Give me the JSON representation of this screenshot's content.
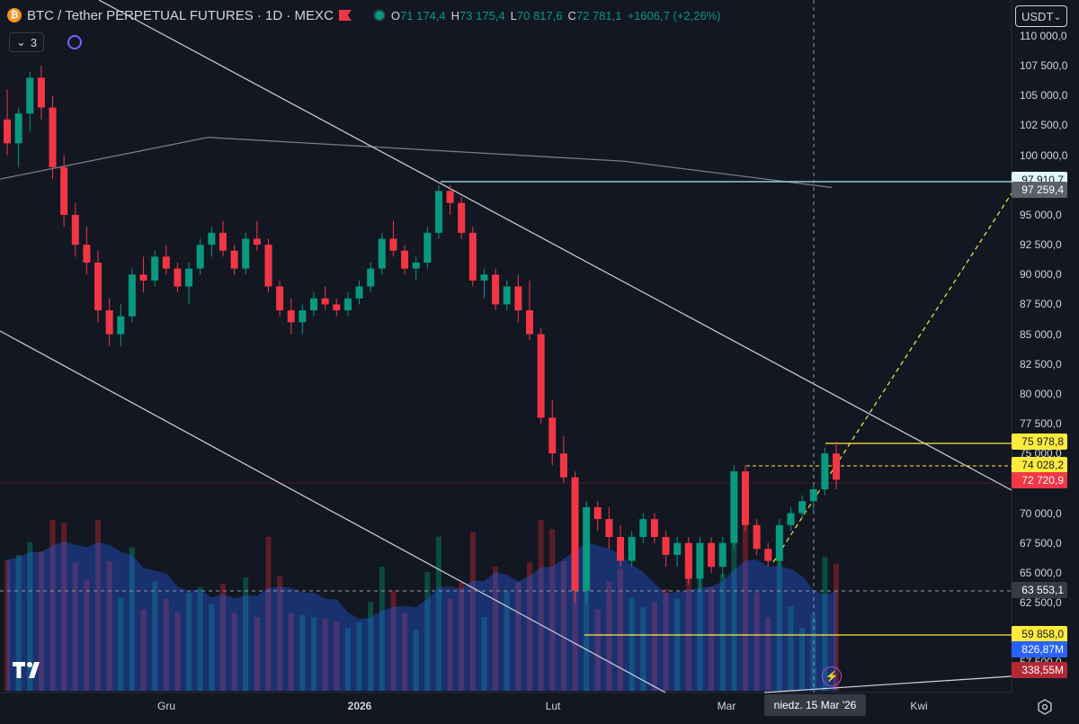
{
  "header": {
    "coin_glyph": "₿",
    "symbol": "BTC / Tether PERPETUAL FUTURES · 1D · MEXC",
    "ohlc": {
      "o_label": "O",
      "o": "71 174,4",
      "h_label": "H",
      "h": "73 175,4",
      "l_label": "L",
      "l": "70 817,6",
      "c_label": "C",
      "c": "72 781,1",
      "change": "+1606,7 (+2,26%)"
    }
  },
  "subbar": {
    "indicators_count": "3",
    "chevron": "⌄"
  },
  "currency_select": {
    "value": "USDT",
    "chevron": "⌄"
  },
  "price_axis": {
    "labels": [
      "110 000,0",
      "107 500,0",
      "105 000,0",
      "102 500,0",
      "100 000,0",
      "95 000,0",
      "92 500,0",
      "90 000,0",
      "87 500,0",
      "85 000,0",
      "82 500,0",
      "80 000,0",
      "77 500,0",
      "75 000,0",
      "70 000,0",
      "67 500,0",
      "65 000,0",
      "62 500,0",
      "57 500,0"
    ],
    "tags": [
      {
        "text": "97 910,7",
        "bg": "#e0f7fa",
        "fg": "#131722",
        "value": 97910.7
      },
      {
        "text": "97 259,4",
        "bg": "#5d606b",
        "fg": "#ffffff",
        "value": 97259.4
      },
      {
        "text": "75 978,8",
        "bg": "#ffeb3b",
        "fg": "#131722",
        "value": 75978.8
      },
      {
        "text": "74 028,2",
        "bg": "#ffeb3b",
        "fg": "#131722",
        "value": 74028.2
      },
      {
        "text": "72 720,9",
        "bg": "#f23645",
        "fg": "#ffffff",
        "value": 72720.9
      },
      {
        "text": "63 553,1",
        "bg": "#363a45",
        "fg": "#ffffff",
        "value": 63553.1
      },
      {
        "text": "59 858,0",
        "bg": "#ffeb3b",
        "fg": "#131722",
        "value": 59858.0
      },
      {
        "text": "826,87M",
        "bg": "#2962ff",
        "fg": "#ffffff",
        "volume": true
      },
      {
        "text": "338,55M",
        "bg": "#b22833",
        "fg": "#ffffff",
        "volume": true
      }
    ]
  },
  "time_axis": {
    "labels": [
      {
        "text": "Gru",
        "bold": false
      },
      {
        "text": "2026",
        "bold": true
      },
      {
        "text": "Lut",
        "bold": false
      },
      {
        "text": "Mar",
        "bold": false
      },
      {
        "text": "Kwi",
        "bold": false
      }
    ],
    "crosshair_date": "niedz. 15 Mar '26"
  },
  "colors": {
    "background": "#131722",
    "up": "#089981",
    "down": "#f23645",
    "volume_ma": "#2962ff",
    "trendline": "#d1d4dc",
    "level_yellow": "#ffeb3b",
    "level_cyan": "#b2ebf2",
    "ma_line": "#787b86"
  },
  "chart_data": {
    "type": "candlestick",
    "ylim": [
      55000,
      111500
    ],
    "ohlc_sample": [
      [
        103000,
        105500,
        100000,
        101000
      ],
      [
        101000,
        104000,
        99000,
        103500
      ],
      [
        103500,
        107000,
        102000,
        106500
      ],
      [
        106500,
        107500,
        103000,
        104000
      ],
      [
        104000,
        105000,
        98000,
        99000
      ],
      [
        99000,
        100000,
        94000,
        95000
      ],
      [
        95000,
        96000,
        91500,
        92500
      ],
      [
        92500,
        94000,
        90000,
        91000
      ],
      [
        91000,
        92000,
        86000,
        87000
      ],
      [
        87000,
        88000,
        84000,
        85000
      ],
      [
        85000,
        87500,
        84000,
        86500
      ],
      [
        86500,
        90500,
        86000,
        90000
      ],
      [
        90000,
        91500,
        88500,
        89500
      ],
      [
        89500,
        92000,
        89000,
        91500
      ],
      [
        91500,
        92500,
        90000,
        90500
      ],
      [
        90500,
        91000,
        88500,
        89000
      ],
      [
        89000,
        91000,
        87500,
        90500
      ],
      [
        90500,
        93000,
        90000,
        92500
      ],
      [
        92500,
        94000,
        91500,
        93500
      ],
      [
        93500,
        94500,
        91500,
        92000
      ],
      [
        92000,
        92500,
        90000,
        90500
      ],
      [
        90500,
        93500,
        90000,
        93000
      ],
      [
        93000,
        94500,
        92000,
        92500
      ],
      [
        92500,
        93000,
        88500,
        89000
      ],
      [
        89000,
        89500,
        86500,
        87000
      ],
      [
        87000,
        88000,
        85000,
        86000
      ],
      [
        86000,
        87500,
        85000,
        87000
      ],
      [
        87000,
        88500,
        86500,
        88000
      ],
      [
        88000,
        89000,
        87000,
        87500
      ],
      [
        87500,
        88000,
        86500,
        87000
      ],
      [
        87000,
        88500,
        86500,
        88000
      ],
      [
        88000,
        89500,
        87500,
        89000
      ],
      [
        89000,
        91000,
        88500,
        90500
      ],
      [
        90500,
        93500,
        90000,
        93000
      ],
      [
        93000,
        94500,
        91500,
        92000
      ],
      [
        92000,
        92500,
        90000,
        90500
      ],
      [
        90500,
        91500,
        89500,
        91000
      ],
      [
        91000,
        94000,
        90500,
        93500
      ],
      [
        93500,
        97500,
        93000,
        97000
      ],
      [
        97000,
        97500,
        95000,
        96000
      ],
      [
        96000,
        96500,
        93000,
        93500
      ],
      [
        93500,
        94000,
        89000,
        89500
      ],
      [
        89500,
        90500,
        88000,
        90000
      ],
      [
        90000,
        90500,
        87000,
        87500
      ],
      [
        87500,
        89500,
        87000,
        89000
      ],
      [
        89000,
        90000,
        86000,
        87000
      ],
      [
        87000,
        89500,
        84500,
        85000
      ],
      [
        85000,
        85500,
        77500,
        78000
      ],
      [
        78000,
        79500,
        74000,
        75000
      ],
      [
        75000,
        76500,
        72500,
        73000
      ],
      [
        73000,
        73500,
        62500,
        63500
      ],
      [
        63500,
        71000,
        62500,
        70500
      ],
      [
        70500,
        71000,
        68500,
        69500
      ],
      [
        69500,
        70500,
        67000,
        68000
      ],
      [
        68000,
        69000,
        65500,
        66000
      ],
      [
        66000,
        68500,
        65500,
        68000
      ],
      [
        68000,
        70000,
        67500,
        69500
      ],
      [
        69500,
        70000,
        67500,
        68000
      ],
      [
        68000,
        68500,
        65500,
        66500
      ],
      [
        66500,
        68000,
        65500,
        67500
      ],
      [
        67500,
        68000,
        64000,
        64500
      ],
      [
        64500,
        68000,
        63500,
        67500
      ],
      [
        67500,
        68000,
        65000,
        65500
      ],
      [
        65500,
        68000,
        64500,
        67500
      ],
      [
        67500,
        74000,
        67000,
        73500
      ],
      [
        73500,
        74000,
        68500,
        69000
      ],
      [
        69000,
        69500,
        66500,
        67000
      ],
      [
        67000,
        67500,
        65500,
        66000
      ],
      [
        66000,
        69500,
        65500,
        69000
      ],
      [
        69000,
        70500,
        68500,
        70000
      ],
      [
        70000,
        71500,
        69500,
        71000
      ],
      [
        71000,
        72500,
        70000,
        72000
      ],
      [
        72000,
        75500,
        71500,
        75000
      ],
      [
        75000,
        76000,
        72000,
        72800
      ]
    ],
    "moving_average_levels": [
      98000,
      101500,
      100500,
      99500,
      97300
    ],
    "levels": [
      97910.7,
      75978.8,
      74028.2,
      63553.1,
      59858.0
    ]
  }
}
